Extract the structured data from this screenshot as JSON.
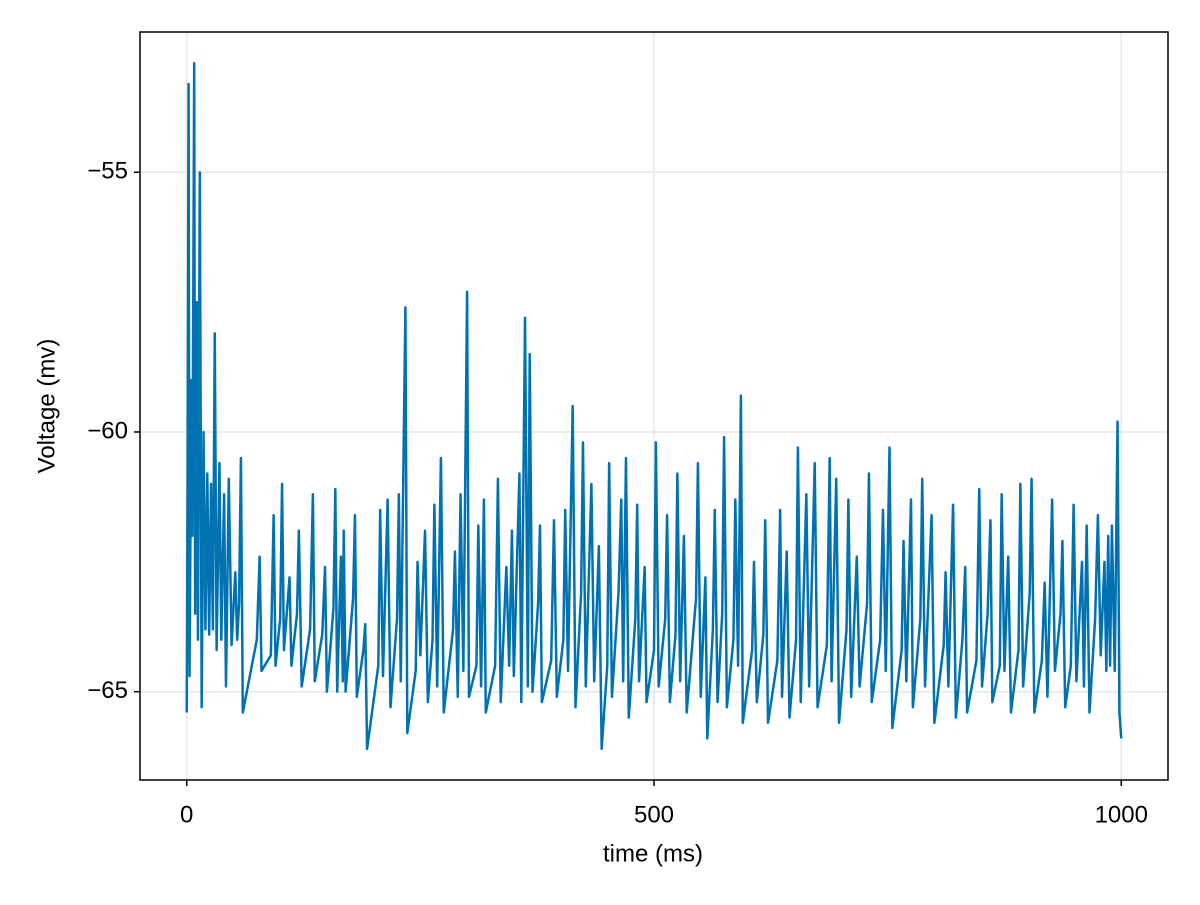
{
  "chart_data": {
    "type": "line",
    "xlabel": "time (ms)",
    "ylabel": "Voltage (mv)",
    "color": "#0072b2",
    "grid": true,
    "xlim": [
      -50,
      1050
    ],
    "xticks": [
      0,
      500,
      1000
    ],
    "ylim": [
      -66.7,
      -52.3
    ],
    "yticks": [
      {
        "value": -65,
        "label": "−65"
      },
      {
        "value": -60,
        "label": "−60"
      },
      {
        "value": -55,
        "label": "−55"
      }
    ],
    "x": [
      0,
      1,
      2,
      3,
      5,
      6,
      8,
      9,
      11,
      12,
      14,
      16,
      18,
      20,
      22,
      24,
      26,
      28,
      30,
      32,
      35,
      37,
      40,
      42,
      45,
      48,
      52,
      54,
      56,
      58,
      60,
      75,
      78,
      80,
      90,
      93,
      95,
      100,
      102,
      104,
      110,
      112,
      118,
      120,
      123,
      132,
      135,
      137,
      145,
      148,
      150,
      157,
      159,
      161,
      165,
      167,
      168,
      170,
      178,
      180,
      182,
      189,
      191,
      193,
      205,
      207,
      210,
      215,
      218,
      225,
      227,
      229,
      234,
      236,
      245,
      247,
      250,
      255,
      258,
      263,
      265,
      268,
      272,
      275,
      285,
      287,
      290,
      293,
      296,
      300,
      302,
      310,
      312,
      315,
      318,
      320,
      330,
      333,
      336,
      342,
      345,
      348,
      350,
      356,
      358,
      362,
      365,
      367,
      370,
      376,
      378,
      380,
      390,
      393,
      396,
      403,
      405,
      408,
      413,
      416,
      422,
      424,
      427,
      433,
      436,
      441,
      444,
      450,
      452,
      455,
      462,
      465,
      467,
      470,
      473,
      480,
      482,
      484,
      490,
      492,
      500,
      502,
      505,
      512,
      514,
      517,
      523,
      525,
      528,
      532,
      535,
      545,
      547,
      550,
      555,
      557,
      563,
      565,
      568,
      573,
      575,
      578,
      585,
      587,
      590,
      593,
      595,
      605,
      607,
      610,
      617,
      619,
      622,
      632,
      635,
      637,
      642,
      645,
      652,
      654,
      657,
      663,
      666,
      672,
      675,
      685,
      688,
      690,
      695,
      698,
      706,
      708,
      711,
      717,
      720,
      728,
      730,
      733,
      742,
      745,
      748,
      752,
      755,
      765,
      767,
      770,
      775,
      777,
      785,
      787,
      790,
      797,
      800,
      810,
      812,
      815,
      820,
      823,
      830,
      833,
      835,
      845,
      848,
      851,
      857,
      860,
      862,
      870,
      872,
      875,
      879,
      882,
      890,
      892,
      895,
      902,
      904,
      907,
      915,
      918,
      921,
      926,
      929,
      935,
      937,
      940,
      946,
      949,
      952,
      958,
      960,
      963,
      966,
      972,
      975,
      978,
      982,
      984,
      986,
      988,
      990,
      993,
      996,
      998,
      1000
    ],
    "values": [
      -65.4,
      -60.5,
      -53.3,
      -64.7,
      -59,
      -62,
      -52.9,
      -63.5,
      -57.5,
      -64,
      -55,
      -65.3,
      -60,
      -63.8,
      -60.8,
      -63.9,
      -61,
      -63.8,
      -58.1,
      -64.2,
      -60.6,
      -64,
      -61.2,
      -64.9,
      -60.9,
      -64.1,
      -62.7,
      -64,
      -63.3,
      -60.5,
      -65.4,
      -64,
      -62.4,
      -64.6,
      -64.3,
      -61.6,
      -64.5,
      -63.6,
      -61,
      -64.2,
      -62.8,
      -64.5,
      -63.5,
      -61.9,
      -64.9,
      -63.8,
      -61.2,
      -64.8,
      -63.9,
      -62.6,
      -65,
      -63.4,
      -61.1,
      -65,
      -62.4,
      -64.8,
      -61.9,
      -65,
      -63.2,
      -61.6,
      -65.1,
      -64.2,
      -63.7,
      -66.1,
      -64.5,
      -61.5,
      -64.7,
      -61.3,
      -65.3,
      -63.6,
      -61.2,
      -64.8,
      -57.6,
      -65.8,
      -64.6,
      -62.5,
      -64.3,
      -61.9,
      -65.2,
      -64,
      -61.4,
      -64.9,
      -60.5,
      -65.4,
      -63.8,
      -62.3,
      -65.1,
      -61.2,
      -64.6,
      -57.3,
      -65.1,
      -64.5,
      -61.8,
      -64.9,
      -61.3,
      -65.4,
      -64.5,
      -60.9,
      -65.2,
      -62.6,
      -64.5,
      -61.9,
      -64.7,
      -60.8,
      -65.2,
      -57.8,
      -64.9,
      -58.5,
      -65,
      -63.3,
      -61.8,
      -65.2,
      -64.4,
      -61.7,
      -65.1,
      -64,
      -61.5,
      -64.6,
      -59.5,
      -65.3,
      -63.1,
      -60.2,
      -64.9,
      -61,
      -64.8,
      -62.2,
      -66.1,
      -64.5,
      -60.6,
      -65.1,
      -63.1,
      -61.3,
      -64.8,
      -60.5,
      -65.5,
      -63.6,
      -61.4,
      -64.8,
      -62.6,
      -65.2,
      -64.2,
      -60.2,
      -64.9,
      -63.6,
      -61.6,
      -65.2,
      -63.9,
      -60.8,
      -64.8,
      -62,
      -65.4,
      -63.2,
      -60.6,
      -65.1,
      -62.8,
      -65.9,
      -63.8,
      -61.5,
      -65.2,
      -63.5,
      -60.1,
      -65.3,
      -64,
      -61.3,
      -64.5,
      -59.3,
      -65.6,
      -64.2,
      -62.5,
      -65.2,
      -63.9,
      -61.7,
      -65.6,
      -64.4,
      -61.5,
      -65.1,
      -62.3,
      -65.5,
      -64,
      -60.3,
      -65.2,
      -61.2,
      -64.9,
      -60.6,
      -65.3,
      -64.1,
      -60.5,
      -64.8,
      -60.9,
      -65.6,
      -63.8,
      -61.3,
      -65.1,
      -62.4,
      -64.9,
      -63.3,
      -60.8,
      -65.2,
      -64,
      -61.5,
      -64.6,
      -60.3,
      -65.7,
      -64.2,
      -62.1,
      -64.8,
      -61.3,
      -65.3,
      -63.6,
      -60.9,
      -64.9,
      -61.6,
      -65.6,
      -64.1,
      -62.7,
      -64.9,
      -61.4,
      -65.5,
      -64,
      -62.6,
      -65.4,
      -64.4,
      -61.1,
      -64.9,
      -63.5,
      -61.7,
      -65.2,
      -64.5,
      -61.2,
      -64.6,
      -62.4,
      -65.4,
      -64.2,
      -61,
      -64.9,
      -63.1,
      -60.9,
      -65.4,
      -64.4,
      -62.9,
      -65.1,
      -61.3,
      -64.6,
      -63.5,
      -62.1,
      -65.3,
      -64.5,
      -61.4,
      -64.8,
      -62.5,
      -64.9,
      -61.8,
      -65.4,
      -63.6,
      -61.6,
      -64.3,
      -62.5,
      -64.6,
      -62,
      -64.5,
      -61.8,
      -64.6,
      -59.8,
      -65.4,
      -65.9
    ]
  }
}
